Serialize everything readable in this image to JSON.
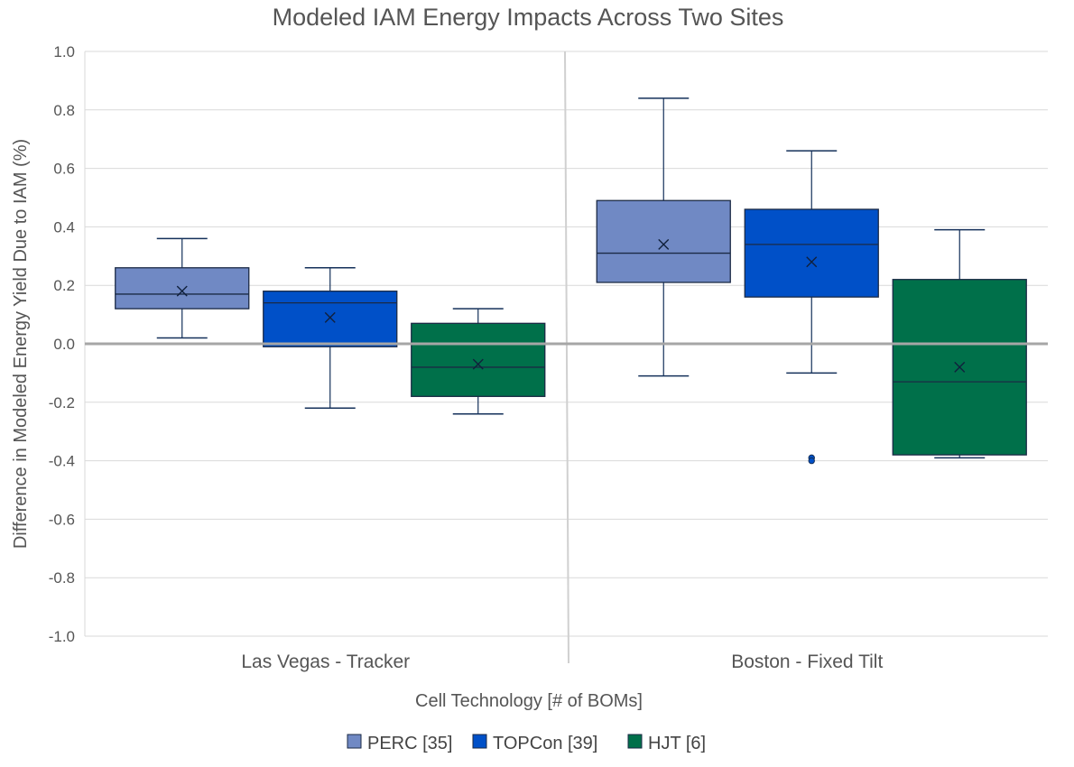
{
  "chart_data": {
    "type": "box",
    "title": "Modeled IAM Energy Impacts Across Two  Sites",
    "xlabel": "Cell Technology [# of BOMs]",
    "ylabel": "Difference in Modeled Energy Yield Due to IAM (%)",
    "ylim": [
      -1.0,
      1.0
    ],
    "ytick_step": 0.2,
    "yticks": [
      "1.0",
      "0.8",
      "0.6",
      "0.4",
      "0.2",
      "0.0",
      "-0.2",
      "-0.4",
      "-0.6",
      "-0.8",
      "-1.0"
    ],
    "grid": true,
    "legend_position": "bottom",
    "categories": [
      "Las Vegas - Tracker",
      "Boston - Fixed Tilt"
    ],
    "series": [
      {
        "name": "PERC [35]",
        "color": "#7089C4",
        "boxes": [
          {
            "min": 0.02,
            "q1": 0.12,
            "median": 0.17,
            "q3": 0.26,
            "max": 0.36,
            "mean": 0.18,
            "outliers": []
          },
          {
            "min": -0.11,
            "q1": 0.21,
            "median": 0.31,
            "q3": 0.49,
            "max": 0.84,
            "mean": 0.34,
            "outliers": []
          }
        ]
      },
      {
        "name": "TOPCon [39]",
        "color": "#0050C8",
        "boxes": [
          {
            "min": -0.22,
            "q1": -0.01,
            "median": 0.14,
            "q3": 0.18,
            "max": 0.26,
            "mean": 0.09,
            "outliers": []
          },
          {
            "min": -0.1,
            "q1": 0.16,
            "median": 0.34,
            "q3": 0.46,
            "max": 0.66,
            "mean": 0.28,
            "outliers": [
              -0.39,
              -0.4
            ]
          }
        ]
      },
      {
        "name": "HJT [6]",
        "color": "#00704A",
        "boxes": [
          {
            "min": -0.24,
            "q1": -0.18,
            "median": -0.08,
            "q3": 0.07,
            "max": 0.12,
            "mean": -0.07,
            "outliers": []
          },
          {
            "min": -0.39,
            "q1": -0.38,
            "median": -0.13,
            "q3": 0.22,
            "max": 0.39,
            "mean": -0.08,
            "outliers": []
          }
        ]
      }
    ]
  }
}
